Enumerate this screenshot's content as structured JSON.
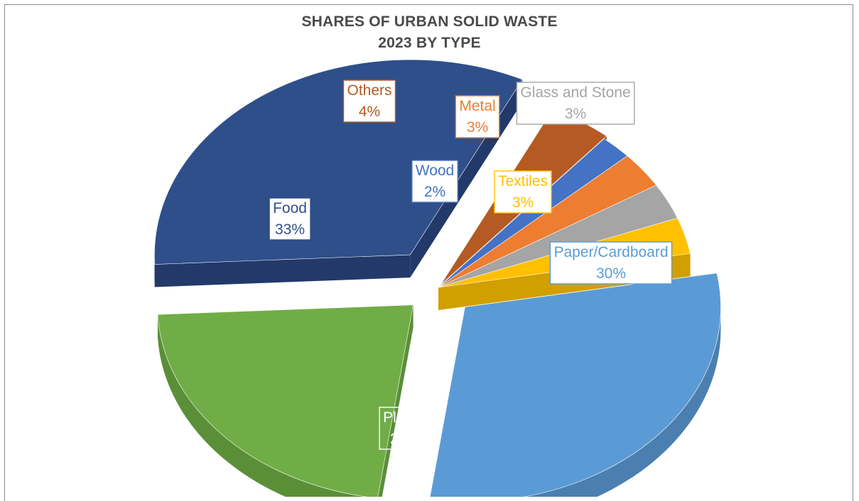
{
  "chart_data": {
    "type": "pie",
    "title_line1": "SHARES OF URBAN SOLID WASTE",
    "title_line2": "2023 BY TYPE",
    "unit": "%",
    "slices": [
      {
        "name": "Paper/Cardboard",
        "value": 30,
        "label": "30%",
        "color": "#5b9bd5",
        "side": "#4a7fb0",
        "text_color": "#5b9bd5"
      },
      {
        "name": "Plastic",
        "value": 22,
        "label": "22%",
        "color": "#70ad47",
        "side": "#5a8f38",
        "text_color": "#ffffff"
      },
      {
        "name": "Food",
        "value": 33,
        "label": "33%",
        "color": "#2f4f8a",
        "side": "#22396a",
        "text_color": "#2f4f8a"
      },
      {
        "name": "Others",
        "value": 4,
        "label": "4%",
        "color": "#b55a22",
        "side": "#8a431a",
        "text_color": "#b55a22"
      },
      {
        "name": "Wood",
        "value": 2,
        "label": "2%",
        "color": "#4472c4",
        "side": "#345a9c",
        "text_color": "#4472c4"
      },
      {
        "name": "Metal",
        "value": 3,
        "label": "3%",
        "color": "#ed7d31",
        "side": "#c46526",
        "text_color": "#ed7d31"
      },
      {
        "name": "Glass and Stone",
        "value": 3,
        "label": "3%",
        "color": "#a5a5a5",
        "side": "#858585",
        "text_color": "#a5a5a5"
      },
      {
        "name": "Textiles",
        "value": 3,
        "label": "3%",
        "color": "#ffc000",
        "side": "#d29f00",
        "text_color": "#ffc000"
      }
    ]
  }
}
